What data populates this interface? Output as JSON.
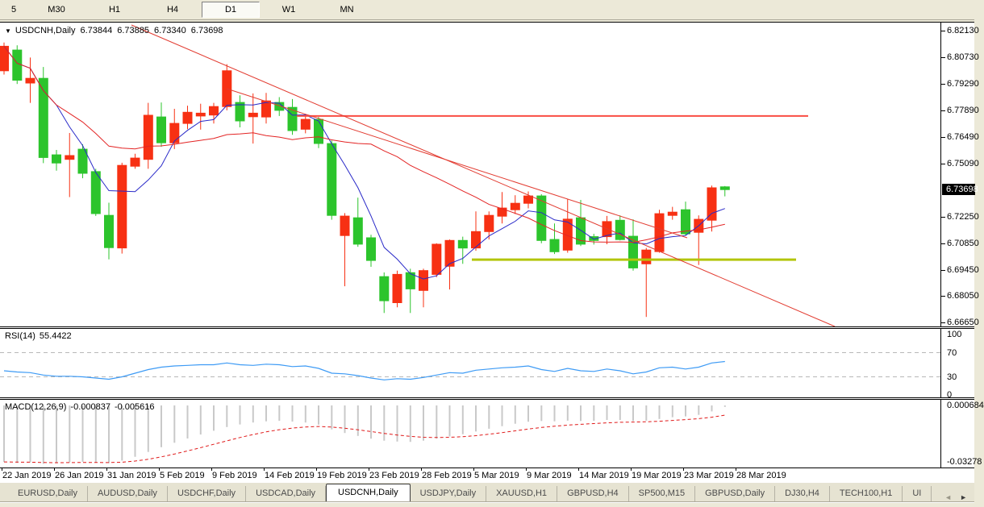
{
  "toolbar": {
    "items": [
      "5",
      "M30",
      "H1",
      "H4",
      "D1",
      "W1",
      "MN"
    ],
    "active": "D1"
  },
  "chart": {
    "title": {
      "dropdown_icon": "▼",
      "symbol": "USDCNH,Daily",
      "open": "6.73844",
      "high": "6.73885",
      "low": "6.73340",
      "close": "6.73698"
    },
    "price_axis": {
      "ticks": [
        "6.82130",
        "6.80730",
        "6.79290",
        "6.77890",
        "6.76490",
        "6.75090",
        "6.72250",
        "6.70850",
        "6.69450",
        "6.68050",
        "6.66650"
      ],
      "current_price": "6.73698"
    },
    "time_axis": {
      "labels": [
        "22 Jan 2019",
        "26 Jan 2019",
        "31 Jan 2019",
        "5 Feb 2019",
        "9 Feb 2019",
        "14 Feb 2019",
        "19 Feb 2019",
        "23 Feb 2019",
        "28 Feb 2019",
        "5 Mar 2019",
        "9 Mar 2019",
        "14 Mar 2019",
        "19 Mar 2019",
        "23 Mar 2019",
        "28 Mar 2019"
      ]
    }
  },
  "chart_data": {
    "type": "candlestick",
    "symbol": "USDCNH",
    "timeframe": "Daily",
    "ylim": {
      "min": 6.6665,
      "max": 6.8213
    },
    "bull_color": "#f73013",
    "bear_color": "#2cc42c",
    "candles": [
      [
        6.8,
        6.815,
        6.798,
        6.813
      ],
      [
        6.811,
        6.8135,
        6.793,
        6.795
      ],
      [
        6.7935,
        6.807,
        6.783,
        6.796
      ],
      [
        6.796,
        6.802,
        6.751,
        6.754
      ],
      [
        6.7554,
        6.758,
        6.747,
        6.7511
      ],
      [
        6.753,
        6.767,
        6.733,
        6.755
      ],
      [
        6.7584,
        6.761,
        6.743,
        6.7456
      ],
      [
        6.7465,
        6.748,
        6.723,
        6.7242
      ],
      [
        6.7233,
        6.73,
        6.7,
        6.7062
      ],
      [
        6.706,
        6.7512,
        6.703,
        6.7498
      ],
      [
        6.7494,
        6.756,
        6.748,
        6.7537
      ],
      [
        6.753,
        6.783,
        6.748,
        6.7764
      ],
      [
        6.7755,
        6.7832,
        6.7597,
        6.7618
      ],
      [
        6.7618,
        6.7798,
        6.7585,
        6.7721
      ],
      [
        6.7721,
        6.7815,
        6.769,
        6.778
      ],
      [
        6.776,
        6.7825,
        6.7688,
        6.7775
      ],
      [
        6.7765,
        6.783,
        6.772,
        6.781
      ],
      [
        6.781,
        6.8035,
        6.779,
        6.8
      ],
      [
        6.7832,
        6.787,
        6.77,
        6.7734
      ],
      [
        6.7756,
        6.788,
        6.7614,
        6.7775
      ],
      [
        6.7755,
        6.7883,
        6.772,
        6.784
      ],
      [
        6.7832,
        6.786,
        6.776,
        6.779
      ],
      [
        6.7806,
        6.785,
        6.766,
        6.7683
      ],
      [
        6.769,
        6.777,
        6.7668,
        6.7742
      ],
      [
        6.7742,
        6.7755,
        6.759,
        6.7614
      ],
      [
        6.7614,
        6.763,
        6.721,
        6.7233
      ],
      [
        6.7126,
        6.7245,
        6.6857,
        6.7229
      ],
      [
        6.722,
        6.7327,
        6.7066,
        6.708
      ],
      [
        6.7114,
        6.713,
        6.696,
        6.6994
      ],
      [
        6.6908,
        6.693,
        6.6715,
        6.678
      ],
      [
        6.677,
        6.694,
        6.6745,
        6.692
      ],
      [
        6.6929,
        6.695,
        6.6715,
        6.6843
      ],
      [
        6.6835,
        6.695,
        6.6745,
        6.694
      ],
      [
        6.692,
        6.7085,
        6.6905,
        6.708
      ],
      [
        6.6963,
        6.7105,
        6.684,
        6.71
      ],
      [
        6.71,
        6.712,
        6.6976,
        6.706
      ],
      [
        6.706,
        6.7254,
        6.7045,
        6.7147
      ],
      [
        6.7147,
        6.7254,
        6.7105,
        6.7233
      ],
      [
        6.7229,
        6.7357,
        6.719,
        6.7272
      ],
      [
        6.7263,
        6.734,
        6.724,
        6.7297
      ],
      [
        6.7297,
        6.736,
        6.727,
        6.7336
      ],
      [
        6.7336,
        6.7345,
        6.7085,
        6.71
      ],
      [
        6.7105,
        6.719,
        6.7028,
        6.704
      ],
      [
        6.7049,
        6.7319,
        6.7035,
        6.7213
      ],
      [
        6.722,
        6.7315,
        6.707,
        6.708
      ],
      [
        6.712,
        6.7135,
        6.7078,
        6.71
      ],
      [
        6.712,
        6.723,
        6.708,
        6.72
      ],
      [
        6.7207,
        6.7233,
        6.71,
        6.7105
      ],
      [
        6.7122,
        6.7212,
        6.694,
        6.6954
      ],
      [
        6.6976,
        6.706,
        6.6694,
        6.7049
      ],
      [
        6.7041,
        6.7263,
        6.7035,
        6.7242
      ],
      [
        6.7233,
        6.7278,
        6.721,
        6.725
      ],
      [
        6.7263,
        6.7306,
        6.7127,
        6.7135
      ],
      [
        6.7143,
        6.7233,
        6.697,
        6.7212
      ],
      [
        6.7207,
        6.7391,
        6.7147,
        6.7379
      ],
      [
        6.73844,
        6.73885,
        6.7334,
        6.73698
      ]
    ],
    "overlays": {
      "ma_fast": {
        "type": "sma",
        "period": 5,
        "color": "#2929c8"
      },
      "ma_slow": {
        "type": "sma",
        "period": 20,
        "color": "#e32424"
      }
    },
    "annotations": [
      {
        "name": "resistance-line",
        "kind": "hline",
        "price": 6.776,
        "x1": 368,
        "x2": 1002,
        "color": "#fa4d43",
        "width": 2
      },
      {
        "name": "support-line",
        "kind": "hline",
        "price": 6.6998,
        "x1": 585,
        "x2": 987,
        "color": "#b3c50c",
        "width": 3
      },
      {
        "name": "downtrend-line-outer",
        "kind": "trend",
        "x1": 163,
        "y1": 3,
        "x2": 1035,
        "y2": 377,
        "color": "#e23b30",
        "width": 1
      },
      {
        "name": "downtrend-line-inner",
        "kind": "trend",
        "x1": 281,
        "y1": 82,
        "x2": 852,
        "y2": 267,
        "color": "#e23b30",
        "width": 1
      }
    ],
    "rsi": {
      "label": "RSI(14)",
      "value_label": "55.4422",
      "color": "#3e9bf5",
      "levels": [
        70,
        30
      ],
      "axis_labels": [
        "100",
        "70",
        "30",
        "0"
      ],
      "values": [
        40,
        38,
        37,
        33,
        31,
        31,
        30,
        28,
        26,
        30,
        36,
        42,
        46,
        48,
        49,
        50,
        50,
        53,
        50,
        49,
        51,
        50,
        47,
        48,
        44,
        36,
        35,
        32,
        28,
        25,
        27,
        26,
        29,
        33,
        37,
        36,
        41,
        43,
        45,
        46,
        48,
        42,
        39,
        44,
        40,
        39,
        43,
        40,
        35,
        38,
        45,
        46,
        43,
        46,
        53,
        55.4
      ]
    },
    "macd": {
      "label": "MACD(12,26,9)",
      "value_main": "-0.000837",
      "value_signal": "-0.005616",
      "axis_top": "0.000684",
      "axis_bottom": "-0.03278",
      "hist_color": "#c9c9c9",
      "signal_color": "#e01919",
      "signal_period": 9,
      "hist": [
        -0.033,
        -0.0336,
        -0.0333,
        -0.0341,
        -0.0338,
        -0.0333,
        -0.0329,
        -0.0333,
        -0.0337,
        -0.0322,
        -0.03,
        -0.0272,
        -0.0244,
        -0.0218,
        -0.0193,
        -0.017,
        -0.0148,
        -0.0126,
        -0.0111,
        -0.01,
        -0.0093,
        -0.009,
        -0.0094,
        -0.01,
        -0.0112,
        -0.014,
        -0.0161,
        -0.0178,
        -0.0194,
        -0.0206,
        -0.0211,
        -0.0213,
        -0.0206,
        -0.0194,
        -0.0181,
        -0.0168,
        -0.0152,
        -0.0136,
        -0.0121,
        -0.0107,
        -0.0095,
        -0.0091,
        -0.0093,
        -0.0089,
        -0.0091,
        -0.009,
        -0.0085,
        -0.0085,
        -0.0091,
        -0.0089,
        -0.0079,
        -0.0069,
        -0.0064,
        -0.0055,
        -0.0035,
        -0.000837
      ]
    }
  },
  "tabs": {
    "items": [
      {
        "label": "EURUSD,Daily"
      },
      {
        "label": "AUDUSD,Daily"
      },
      {
        "label": "USDCHF,Daily"
      },
      {
        "label": "USDCAD,Daily"
      },
      {
        "label": "USDCNH,Daily",
        "active": true
      },
      {
        "label": "USDJPY,Daily"
      },
      {
        "label": "XAUUSD,H1"
      },
      {
        "label": "GBPUSD,H4"
      },
      {
        "label": "SP500,M15"
      },
      {
        "label": "GBPUSD,Daily"
      },
      {
        "label": "DJ30,H4"
      },
      {
        "label": "TECH100,H1"
      },
      {
        "label": "UI"
      }
    ],
    "scroll_left": "◄",
    "scroll_right": "►"
  }
}
